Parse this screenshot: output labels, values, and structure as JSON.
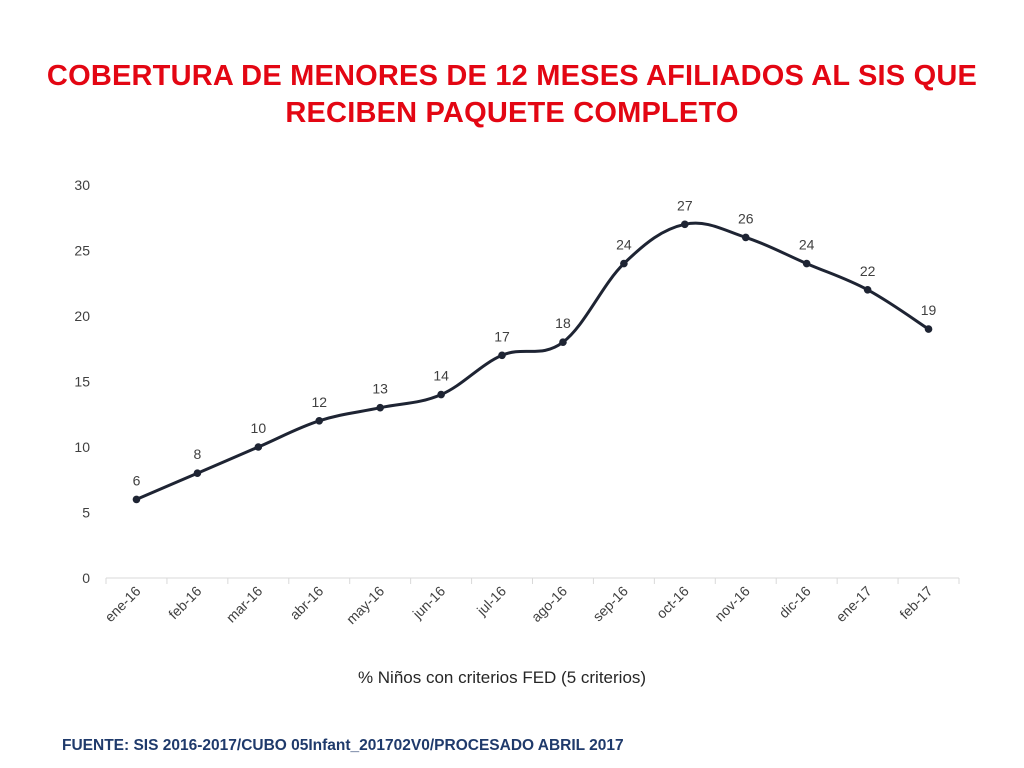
{
  "slide": {
    "title_line1": "COBERTURA DE MENORES DE 12 MESES AFILIADOS AL SIS QUE",
    "title_line2": "RECIBEN PAQUETE COMPLETO",
    "source": "FUENTE: SIS 2016-2017/CUBO 05Infant_201702V0/PROCESADO ABRIL 2017",
    "title_color": "#e30613",
    "source_color": "#1f3a6b"
  },
  "chart_data": {
    "type": "line",
    "title": "",
    "categories": [
      "ene-16",
      "feb-16",
      "mar-16",
      "abr-16",
      "may-16",
      "jun-16",
      "jul-16",
      "ago-16",
      "sep-16",
      "oct-16",
      "nov-16",
      "dic-16",
      "ene-17",
      "feb-17"
    ],
    "series": [
      {
        "name": "% Niños con criterios FED (5 criterios)",
        "values": [
          6,
          8,
          10,
          12,
          13,
          14,
          17,
          18,
          24,
          27,
          26,
          24,
          22,
          19
        ],
        "color": "#1e2433"
      }
    ],
    "ylim": [
      0,
      30
    ],
    "yticks": [
      0,
      5,
      10,
      15,
      20,
      25,
      30
    ],
    "smooth": true,
    "grid": false,
    "data_labels": true,
    "legend": "bottom"
  }
}
